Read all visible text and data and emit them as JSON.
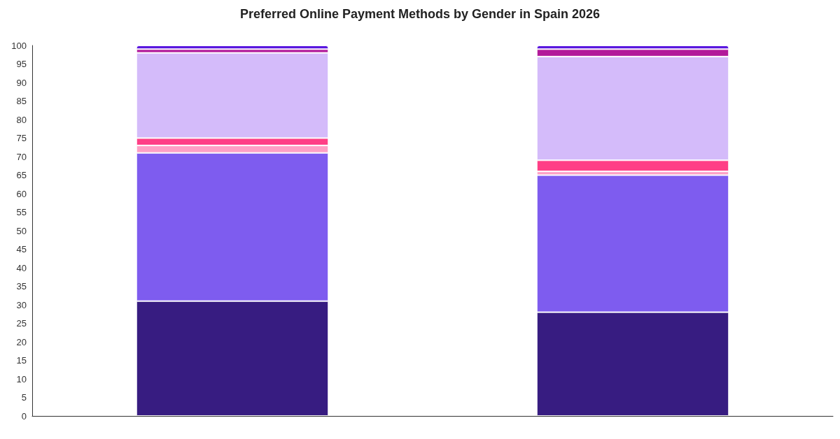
{
  "chart_data": {
    "type": "bar",
    "title": "Preferred Online Payment Methods by Gender in Spain 2026",
    "categories": [
      null,
      null
    ],
    "stacked": true,
    "grid": false,
    "series": [
      {
        "color": "#371c81",
        "values": [
          31,
          28
        ]
      },
      {
        "color": "#7e5cef",
        "values": [
          40,
          37
        ]
      },
      {
        "color": "#ff9fc5",
        "values": [
          2,
          1
        ]
      },
      {
        "color": "#ff3f86",
        "values": [
          2,
          3
        ]
      },
      {
        "color": "#d4bbfa",
        "values": [
          23,
          28
        ]
      },
      {
        "color": "#b21a9a",
        "values": [
          1,
          2
        ]
      },
      {
        "color": "#5a17df",
        "values": [
          1,
          1
        ]
      }
    ],
    "ylim": [
      0,
      100
    ],
    "yticks": [
      0,
      5,
      10,
      15,
      20,
      25,
      30,
      35,
      40,
      45,
      50,
      55,
      60,
      65,
      70,
      75,
      80,
      85,
      90,
      95,
      100
    ]
  }
}
